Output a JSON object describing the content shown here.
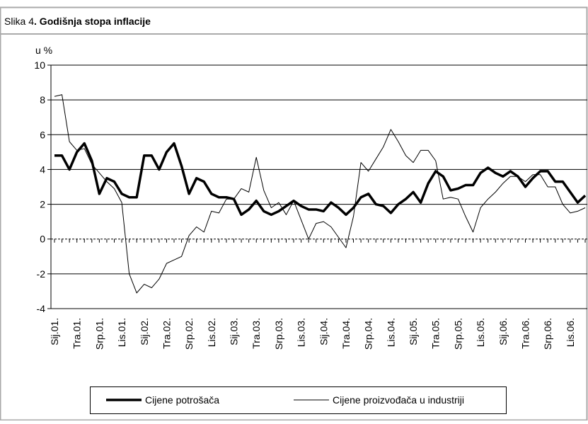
{
  "chart_data": {
    "type": "line",
    "figure_label": "Slika 4",
    "title": ". Godišnja stopa inflacije",
    "y_label": "u %",
    "categories": [
      "Sij.01.",
      null,
      null,
      "Tra.01.",
      null,
      null,
      "Srp.01.",
      null,
      null,
      "Lis.01.",
      null,
      null,
      "Sij.02.",
      null,
      null,
      "Tra.02.",
      null,
      null,
      "Srp.02.",
      null,
      null,
      "Lis.02.",
      null,
      null,
      "Sij.03.",
      null,
      null,
      "Tra.03.",
      null,
      null,
      "Srp.03.",
      null,
      null,
      "Lis.03.",
      null,
      null,
      "Sij.04.",
      null,
      null,
      "Tra.04.",
      null,
      null,
      "Srp.04.",
      null,
      null,
      "Lis.04.",
      null,
      null,
      "Sij.05.",
      null,
      null,
      "Tra.05.",
      null,
      null,
      "Srp.05.",
      null,
      null,
      "Lis.05.",
      null,
      null,
      "Sij.06.",
      null,
      null,
      "Tra.06.",
      null,
      null,
      "Srp.06.",
      null,
      null,
      "Lis.06.",
      null,
      null
    ],
    "series": [
      {
        "name": "Cijene potrošača",
        "color": "#000000",
        "width": 3.5,
        "values": [
          4.8,
          4.8,
          4.0,
          5.0,
          5.5,
          4.5,
          2.6,
          3.5,
          3.3,
          2.6,
          2.4,
          2.4,
          4.8,
          4.8,
          4.0,
          5.0,
          5.5,
          4.2,
          2.6,
          3.5,
          3.3,
          2.6,
          2.4,
          2.4,
          2.3,
          1.4,
          1.7,
          2.2,
          1.6,
          1.4,
          1.6,
          1.9,
          2.2,
          1.9,
          1.7,
          1.7,
          1.6,
          2.1,
          1.8,
          1.4,
          1.8,
          2.4,
          2.6,
          2.0,
          1.9,
          1.5,
          2.0,
          2.3,
          2.7,
          2.1,
          3.2,
          3.9,
          3.6,
          2.8,
          2.9,
          3.1,
          3.1,
          3.8,
          4.1,
          3.8,
          3.6,
          3.9,
          3.6,
          3.0,
          3.5,
          3.9,
          3.9,
          3.3,
          3.3,
          2.7,
          2.1,
          2.5
        ]
      },
      {
        "name": "Cijene proizvođača u industriji",
        "color": "#000000",
        "width": 1,
        "values": [
          8.2,
          8.3,
          5.6,
          5.1,
          5.2,
          4.3,
          3.8,
          3.3,
          2.9,
          2.1,
          -2.0,
          -3.1,
          -2.6,
          -2.8,
          -2.3,
          -1.4,
          -1.2,
          -1.0,
          0.2,
          0.7,
          0.4,
          1.6,
          1.5,
          2.3,
          2.3,
          2.9,
          2.7,
          4.7,
          2.8,
          1.8,
          2.1,
          1.4,
          2.2,
          1.1,
          0.0,
          0.9,
          1.0,
          0.7,
          0.1,
          -0.5,
          1.3,
          4.4,
          3.9,
          4.6,
          5.3,
          6.3,
          5.6,
          4.8,
          4.4,
          5.1,
          5.1,
          4.5,
          2.3,
          2.4,
          2.3,
          1.3,
          0.4,
          1.8,
          2.3,
          2.7,
          3.2,
          3.6,
          3.6,
          3.3,
          3.7,
          3.7,
          3.0,
          3.0,
          2.0,
          1.5,
          1.6,
          1.8
        ]
      }
    ],
    "ylim": [
      -4,
      10
    ],
    "yticks": [
      -4,
      -2,
      0,
      2,
      4,
      6,
      8,
      10
    ],
    "grid": true,
    "legend": "bottom"
  }
}
